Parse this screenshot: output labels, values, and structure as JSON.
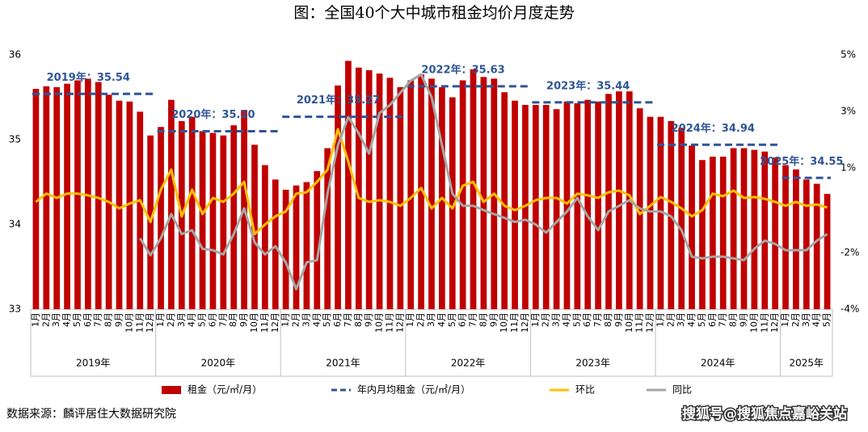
{
  "chart_data": {
    "type": "bar",
    "title": "图：全国40个大中城市租金均价月度走势",
    "source": "数据来源：麟评居住大数据研究院",
    "watermark": "搜狐号@搜狐焦点嘉峪关站",
    "categories": [
      "1月",
      "2月",
      "3月",
      "4月",
      "5月",
      "6月",
      "7月",
      "8月",
      "9月",
      "10月",
      "11月",
      "12月",
      "1月",
      "2月",
      "3月",
      "4月",
      "5月",
      "6月",
      "7月",
      "8月",
      "9月",
      "10月",
      "11月",
      "12月",
      "1月",
      "2月",
      "3月",
      "4月",
      "5月",
      "6月",
      "7月",
      "8月",
      "9月",
      "10月",
      "11月",
      "12月",
      "1月",
      "2月",
      "3月",
      "4月",
      "5月",
      "6月",
      "7月",
      "8月",
      "9月",
      "10月",
      "11月",
      "12月",
      "1月",
      "2月",
      "3月",
      "4月",
      "5月",
      "6月",
      "7月",
      "8月",
      "9月",
      "10月",
      "11月",
      "12月",
      "1月",
      "2月",
      "3月",
      "4月",
      "5月",
      "6月",
      "7月",
      "8月",
      "9月",
      "10月",
      "11月",
      "12月",
      "1月",
      "2月",
      "3月",
      "4月",
      "5月"
    ],
    "year_labels": [
      "2019年",
      "2020年",
      "2021年",
      "2022年",
      "2023年",
      "2024年",
      "2025年"
    ],
    "ylim": [
      33,
      36
    ],
    "yticks": [
      33,
      34,
      35,
      36
    ],
    "y2lim": [
      -4,
      5
    ],
    "y2ticks": [
      {
        "value": 5,
        "label": "5%"
      },
      {
        "value": 3,
        "label": "3%"
      },
      {
        "value": 1,
        "label": "1%"
      },
      {
        "value": -2,
        "label": "-2%"
      },
      {
        "value": -4,
        "label": "-4%"
      }
    ],
    "series": [
      {
        "name": "租金（元/㎡/月）",
        "type": "bar",
        "color": "#c00000",
        "values": [
          35.6,
          35.63,
          35.62,
          35.66,
          35.7,
          35.72,
          35.68,
          35.53,
          35.46,
          35.45,
          35.33,
          35.05,
          35.15,
          35.47,
          35.22,
          35.27,
          35.1,
          35.08,
          35.05,
          35.17,
          35.35,
          34.94,
          34.7,
          34.53,
          34.41,
          34.46,
          34.5,
          34.63,
          34.9,
          35.64,
          35.93,
          35.85,
          35.82,
          35.78,
          35.73,
          35.62,
          35.7,
          35.77,
          35.72,
          35.62,
          35.5,
          35.7,
          35.83,
          35.74,
          35.72,
          35.56,
          35.46,
          35.41,
          35.41,
          35.41,
          35.36,
          35.45,
          35.43,
          35.47,
          35.45,
          35.54,
          35.57,
          35.57,
          35.37,
          35.27,
          35.27,
          35.22,
          35.14,
          34.93,
          34.76,
          34.8,
          34.8,
          34.9,
          34.9,
          34.88,
          34.86,
          34.79,
          34.7,
          34.65,
          34.53,
          34.48,
          34.36
        ]
      },
      {
        "name": "环比",
        "type": "line",
        "axis": "y2",
        "color": "#ffc000",
        "values": [
          -0.2,
          0.09,
          -0.06,
          0.09,
          0.09,
          0.03,
          -0.06,
          -0.2,
          -0.43,
          -0.26,
          -0.14,
          -0.91,
          0.23,
          0.94,
          -0.71,
          0.23,
          -0.63,
          -0.06,
          -0.2,
          0.09,
          0.51,
          -1.34,
          -1.0,
          -0.71,
          -0.54,
          0.09,
          0.14,
          0.51,
          0.94,
          2.37,
          1.23,
          -0.06,
          -0.2,
          -0.14,
          -0.2,
          -0.34,
          -0.06,
          0.29,
          -0.43,
          -0.06,
          -0.43,
          0.37,
          0.51,
          -0.2,
          0.09,
          -0.34,
          -0.49,
          -0.34,
          -0.14,
          -0.06,
          -0.06,
          -0.26,
          0.09,
          0.03,
          -0.06,
          0.14,
          0.2,
          0.03,
          -0.63,
          -0.34,
          -0.03,
          -0.2,
          -0.43,
          -0.71,
          -0.49,
          0.09,
          0,
          0.2,
          -0.06,
          -0.03,
          -0.09,
          -0.2,
          -0.34,
          -0.2,
          -0.34,
          -0.29,
          -0.4
        ]
      },
      {
        "name": "同比",
        "type": "line",
        "axis": "y2",
        "color": "#a6a6a6",
        "values": [
          null,
          null,
          null,
          null,
          null,
          null,
          null,
          null,
          null,
          null,
          -1.49,
          -2.09,
          -1.49,
          -0.63,
          -1.34,
          -1.2,
          -1.86,
          -1.91,
          -2.06,
          -1.34,
          -0.43,
          -1.63,
          -2.06,
          -1.77,
          -2.34,
          -3.29,
          -2.34,
          -2.26,
          0.09,
          1.8,
          2.8,
          2.23,
          1.51,
          2.94,
          3.23,
          3.66,
          4.09,
          4.31,
          3.51,
          1.8,
          0.09,
          -0.34,
          -0.34,
          -0.49,
          -0.63,
          -0.77,
          -0.91,
          -0.83,
          -1.0,
          -1.29,
          -0.91,
          -0.54,
          -0.06,
          -0.71,
          -1.2,
          -0.54,
          -0.34,
          -0.14,
          -0.43,
          -0.54,
          -0.54,
          -0.71,
          -1.2,
          -2.14,
          -2.2,
          -2.14,
          -2.14,
          -2.2,
          -2.26,
          -1.86,
          -1.57,
          -1.69,
          -1.91,
          -1.91,
          -1.91,
          -1.57,
          -1.34
        ]
      }
    ],
    "annual_average": {
      "name": "年内月均租金（元/㎡/月）",
      "color": "#2f5597",
      "values": [
        35.54,
        35.1,
        35.27,
        35.63,
        35.44,
        34.94,
        34.55
      ],
      "labels": [
        "2019年：35.54",
        "2020年：35.10",
        "2021年：35.27",
        "2022年：35.63",
        "2023年：35.44",
        "2024年：34.94",
        "2025年：34.55"
      ]
    }
  }
}
